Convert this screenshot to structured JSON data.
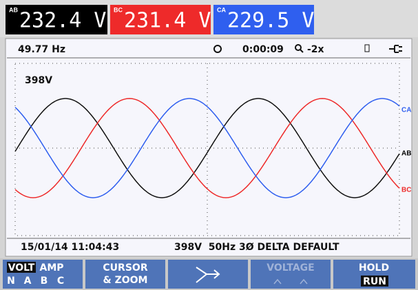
{
  "readings": [
    {
      "phase": "AB",
      "value": "232.4 V"
    },
    {
      "phase": "BC",
      "value": "231.4 V"
    },
    {
      "phase": "CA",
      "value": "229.5 V"
    }
  ],
  "status": {
    "frequency": "49.77 Hz",
    "time": "0:00:09",
    "zoom": "-2x"
  },
  "plot": {
    "scale": "398V",
    "labels": [
      "CA",
      "AB",
      "BC"
    ]
  },
  "footer": {
    "datetime": "15/01/14 11:04:43",
    "info": "398V  50Hz 3Ø DELTA DEFAULT"
  },
  "softkeys": {
    "volt": "VOLT",
    "amp": "AMP",
    "phases": [
      "N",
      "A",
      "B",
      "C"
    ],
    "cursor": [
      "CURSOR",
      "& ZOOM"
    ],
    "voltage": "VOLTAGE",
    "hold": "HOLD",
    "run": "RUN"
  }
}
